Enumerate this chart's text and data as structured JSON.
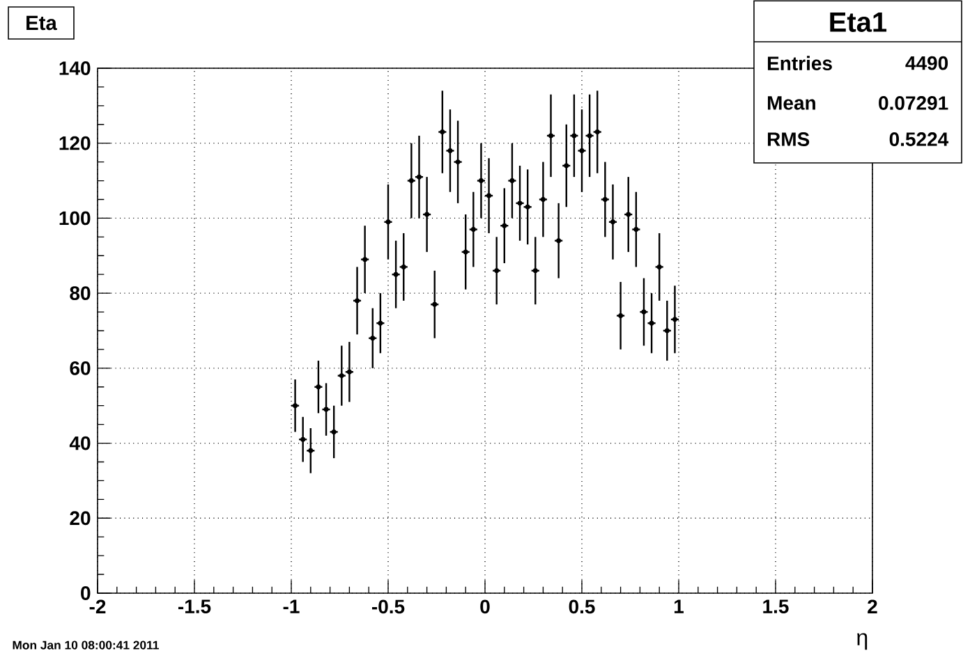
{
  "chart_data": {
    "type": "scatter",
    "title": "Eta",
    "xlabel": "η",
    "color": "#000000",
    "marker": "circle",
    "x": [
      -0.98,
      -0.94,
      -0.9,
      -0.86,
      -0.82,
      -0.78,
      -0.74,
      -0.7,
      -0.66,
      -0.62,
      -0.58,
      -0.54,
      -0.5,
      -0.46,
      -0.42,
      -0.38,
      -0.34,
      -0.3,
      -0.26,
      -0.22,
      -0.18,
      -0.14,
      -0.1,
      -0.06,
      -0.02,
      0.02,
      0.06,
      0.1,
      0.14,
      0.18,
      0.22,
      0.26,
      0.3,
      0.34,
      0.38,
      0.42,
      0.46,
      0.5,
      0.54,
      0.58,
      0.62,
      0.66,
      0.7,
      0.74,
      0.78,
      0.82,
      0.86,
      0.9,
      0.94,
      0.98
    ],
    "values": [
      50,
      41,
      38,
      55,
      49,
      43,
      58,
      59,
      78,
      89,
      68,
      72,
      99,
      85,
      87,
      110,
      111,
      101,
      77,
      123,
      118,
      115,
      91,
      97,
      110,
      106,
      86,
      98,
      110,
      104,
      103,
      86,
      105,
      122,
      94,
      114,
      122,
      118,
      122,
      123,
      105,
      99,
      74,
      101,
      97,
      75,
      72,
      87,
      70,
      73
    ],
    "errors": [
      7,
      6,
      6,
      7,
      7,
      7,
      8,
      8,
      9,
      9,
      8,
      8,
      10,
      9,
      9,
      10,
      11,
      10,
      9,
      11,
      11,
      11,
      10,
      10,
      10,
      10,
      9,
      10,
      10,
      10,
      10,
      9,
      10,
      11,
      10,
      11,
      11,
      11,
      11,
      11,
      10,
      10,
      9,
      10,
      10,
      9,
      8,
      9,
      8,
      9
    ],
    "xerrors": [
      0.02,
      0.02,
      0.02,
      0.02,
      0.02,
      0.02,
      0.02,
      0.02,
      0.02,
      0.02,
      0.02,
      0.02,
      0.02,
      0.02,
      0.02,
      0.02,
      0.02,
      0.02,
      0.02,
      0.02,
      0.02,
      0.02,
      0.02,
      0.02,
      0.02,
      0.02,
      0.02,
      0.02,
      0.02,
      0.02,
      0.02,
      0.02,
      0.02,
      0.02,
      0.02,
      0.02,
      0.02,
      0.02,
      0.02,
      0.02,
      0.02,
      0.02,
      0.02,
      0.02,
      0.02,
      0.02,
      0.02,
      0.02,
      0.02,
      0.02
    ],
    "xlim": [
      -2,
      2
    ],
    "xticks": [
      -2,
      -1.5,
      -1,
      -0.5,
      0,
      0.5,
      1,
      1.5,
      2
    ],
    "ylim": [
      0,
      140
    ],
    "yticks": [
      0,
      20,
      40,
      60,
      80,
      100,
      120,
      140
    ],
    "grid": true,
    "annotations": [
      "Eta1",
      "Entries",
      "4490",
      "Mean",
      "0.07291",
      "RMS",
      "0.5224",
      "Mon Jan 10 08:00:41 2011"
    ]
  }
}
